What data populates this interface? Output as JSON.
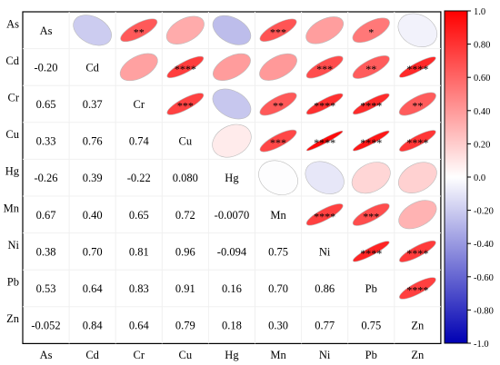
{
  "chart_data": {
    "type": "heatmap",
    "variables": [
      "As",
      "Cd",
      "Cr",
      "Cu",
      "Hg",
      "Mn",
      "Ni",
      "Pb",
      "Zn"
    ],
    "matrix": [
      [
        1,
        -0.2,
        0.65,
        0.33,
        -0.26,
        0.67,
        0.38,
        0.53,
        -0.052
      ],
      [
        -0.2,
        1,
        0.37,
        0.76,
        0.39,
        0.4,
        0.7,
        0.64,
        0.84
      ],
      [
        0.65,
        0.37,
        1,
        0.74,
        -0.22,
        0.65,
        0.81,
        0.83,
        0.64
      ],
      [
        0.33,
        0.76,
        0.74,
        1,
        0.08,
        0.72,
        0.96,
        0.91,
        0.79
      ],
      [
        -0.26,
        0.39,
        -0.22,
        0.08,
        1,
        -0.007,
        -0.094,
        0.16,
        0.18
      ],
      [
        0.67,
        0.4,
        0.65,
        0.72,
        -0.007,
        1,
        0.75,
        0.7,
        0.3
      ],
      [
        0.38,
        0.7,
        0.81,
        0.96,
        -0.094,
        0.75,
        1,
        0.86,
        0.77
      ],
      [
        0.53,
        0.64,
        0.83,
        0.91,
        0.16,
        0.7,
        0.86,
        1,
        0.75
      ],
      [
        -0.052,
        0.84,
        0.64,
        0.79,
        0.18,
        0.3,
        0.77,
        0.75,
        1
      ]
    ],
    "lower_labels": [
      [
        "As",
        "",
        "",
        "",
        "",
        "",
        "",
        "",
        ""
      ],
      [
        "-0.20",
        "Cd",
        "",
        "",
        "",
        "",
        "",
        "",
        ""
      ],
      [
        "0.65",
        "0.37",
        "Cr",
        "",
        "",
        "",
        "",
        "",
        ""
      ],
      [
        "0.33",
        "0.76",
        "0.74",
        "Cu",
        "",
        "",
        "",
        "",
        ""
      ],
      [
        "-0.26",
        "0.39",
        "-0.22",
        "0.080",
        "Hg",
        "",
        "",
        "",
        ""
      ],
      [
        "0.67",
        "0.40",
        "0.65",
        "0.72",
        "-0.0070",
        "Mn",
        "",
        "",
        ""
      ],
      [
        "0.38",
        "0.70",
        "0.81",
        "0.96",
        "-0.094",
        "0.75",
        "Ni",
        "",
        ""
      ],
      [
        "0.53",
        "0.64",
        "0.83",
        "0.91",
        "0.16",
        "0.70",
        "0.86",
        "Pb",
        ""
      ],
      [
        "-0.052",
        "0.84",
        "0.64",
        "0.79",
        "0.18",
        "0.30",
        "0.77",
        "0.75",
        "Zn"
      ]
    ],
    "significance": [
      [
        "",
        "",
        "**",
        "",
        "",
        "***",
        "",
        "*",
        ""
      ],
      [
        "",
        "",
        "",
        "****",
        "",
        "",
        "***",
        "**",
        "****"
      ],
      [
        "",
        "",
        "",
        "***",
        "",
        "**",
        "****",
        "****",
        "**"
      ],
      [
        "",
        "",
        "",
        "",
        "",
        "***",
        "****",
        "****",
        "****"
      ],
      [
        "",
        "",
        "",
        "",
        "",
        "",
        "",
        "",
        ""
      ],
      [
        "",
        "",
        "",
        "",
        "",
        "",
        "****",
        "***",
        ""
      ],
      [
        "",
        "",
        "",
        "",
        "",
        "",
        "",
        "****",
        "****"
      ],
      [
        "",
        "",
        "",
        "",
        "",
        "",
        "",
        "",
        "****"
      ],
      [
        "",
        "",
        "",
        "",
        "",
        "",
        "",
        "",
        ""
      ]
    ],
    "colorbar": {
      "range": [
        -1.0,
        1.0
      ],
      "ticks": [
        "1.0",
        "0.80",
        "0.60",
        "0.40",
        "0.20",
        "0.0",
        "-0.20",
        "-0.40",
        "-0.60",
        "-0.80",
        "-1.0"
      ],
      "tick_values": [
        1.0,
        0.8,
        0.6,
        0.4,
        0.2,
        0.0,
        -0.2,
        -0.4,
        -0.6,
        -0.8,
        -1.0
      ],
      "colors": {
        "high": "#ff0000",
        "mid": "#ffffff",
        "low": "#0000b3"
      }
    },
    "upper_shape": "ellipse",
    "lower_shape": "number",
    "grid": true,
    "legend_position": "right"
  }
}
